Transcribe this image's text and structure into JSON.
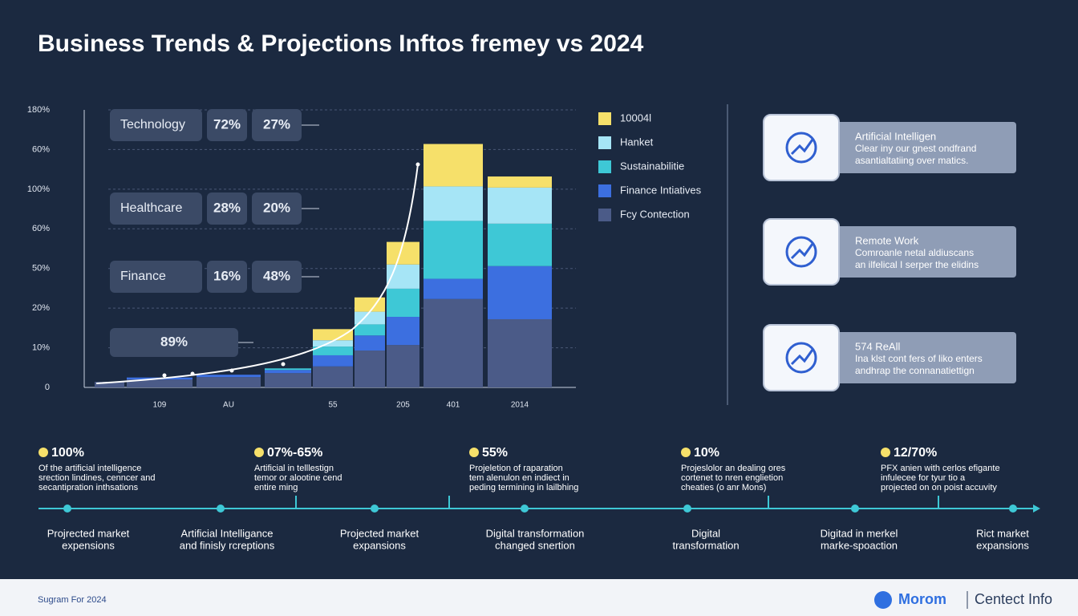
{
  "title": "Business Trends & Projections Inftos fremey vs 2024",
  "chart_data": {
    "type": "bar",
    "stacked": true,
    "categories": [
      null,
      "109",
      "AU",
      null,
      "55",
      null,
      "205",
      "401",
      "2014"
    ],
    "series": [
      {
        "name": "Fcy Contection",
        "color": "#4b5b88",
        "values": [
          1.4,
          2.0,
          2.6,
          3.6,
          5.3,
          9.3,
          10.7,
          22.3,
          17.2
        ]
      },
      {
        "name": "Finance Intiatives",
        "color": "#3c6fe0",
        "values": [
          0,
          0.5,
          0.6,
          0.8,
          2.8,
          3.8,
          7.1,
          5.1,
          13.4
        ]
      },
      {
        "name": "Sustainabilitie",
        "color": "#3ec8d6",
        "values": [
          0,
          0,
          0,
          0.4,
          2.2,
          2.8,
          7.1,
          14.6,
          10.7
        ]
      },
      {
        "name": "Hanket",
        "color": "#a6e5f6",
        "values": [
          0,
          0,
          0,
          0,
          1.6,
          3.2,
          6.1,
          8.7,
          9.1
        ]
      },
      {
        "name": "10004l",
        "color": "#f6e06a",
        "values": [
          0,
          0,
          0,
          0,
          2.8,
          3.6,
          5.7,
          10.7,
          2.8
        ]
      }
    ],
    "ylim": [
      0,
      70
    ],
    "yticks": [
      0,
      {
        "value": 10,
        "label": "10%"
      },
      {
        "value": 20,
        "label": "20%"
      },
      {
        "value": 30,
        "label": "50%"
      },
      {
        "value": 40,
        "label": "60%"
      },
      {
        "value": 50,
        "label": "100%"
      },
      {
        "value": 60,
        "label": "60%"
      },
      {
        "value": 70,
        "label": "180%"
      }
    ],
    "grid": true
  },
  "callouts": [
    {
      "label": "Technology",
      "values": [
        "72%",
        "27%"
      ]
    },
    {
      "label": "Healthcare",
      "values": [
        "28%",
        "20%"
      ]
    },
    {
      "label": "Finance",
      "values": [
        "16%",
        "48%"
      ]
    },
    {
      "label": null,
      "values": [
        "89%"
      ]
    }
  ],
  "cards": [
    {
      "title": "Artificial Intelligen",
      "lines": [
        "Clear iny our gnest ondfrand",
        "asantialtatiing over matics."
      ]
    },
    {
      "title": "Remote Work",
      "lines": [
        "Comroanle netal aldiuscans",
        "an ilfelical I serper the elidins"
      ]
    },
    {
      "title": "574 ReAll",
      "lines": [
        "Ina klst cont fers of liko enters",
        "andhrap the connanatiettign"
      ]
    }
  ],
  "timeline": {
    "stats": [
      {
        "value": "100%",
        "lines": [
          "Of the artificial intelligence",
          "srection lindines, cenncer and",
          "secantipration inthsations"
        ]
      },
      {
        "value": "07%-65%",
        "lines": [
          "Artificial in telllestign",
          "temor or alootine cend",
          "entire ming"
        ]
      },
      {
        "value": "55%",
        "lines": [
          "Projeletion of raparation",
          "tem alenulon en indiect  in",
          "peding termining in lailbhing"
        ]
      },
      {
        "value": "10%",
        "lines": [
          "Projeslolor an dealing ores",
          "cortenet to nren englietion",
          "cheaties (o anr Mons)"
        ]
      },
      {
        "value": "12/70%",
        "lines": [
          "PFX anien with cerlos efigante",
          "infulecee for tyur tio a",
          "projected on on poist accuvity"
        ]
      }
    ],
    "labels": [
      [
        "Projrected market",
        "expensions"
      ],
      [
        "Artificial Intelligance",
        "and finisly rcreptions"
      ],
      [
        "Projected market",
        "expansions"
      ],
      [
        "Digital transformation",
        "changed snertion"
      ],
      [
        "Digital",
        "transformation"
      ],
      [
        "Digitad in merkel",
        "marke-spoaction"
      ],
      [
        "Rict market",
        "expansions"
      ]
    ]
  },
  "footer": {
    "left": "Sugram For 2024",
    "brand": "Morom",
    "right": "Centect Info"
  }
}
